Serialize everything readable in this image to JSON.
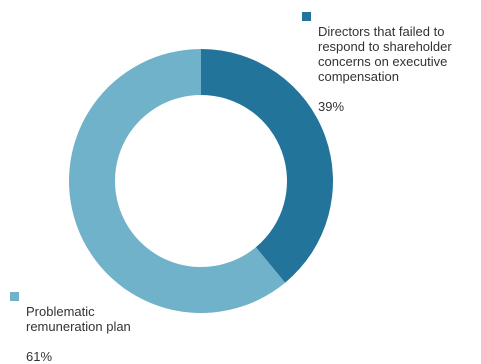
{
  "chart_data": {
    "type": "pie",
    "style": "donut",
    "series": [
      {
        "name": "Directors that failed to\nrespond to shareholder\nconcerns on executive\ncompensation",
        "value": 39,
        "value_label": "39%",
        "color": "#23749a"
      },
      {
        "name": "Problematic\nremuneration plan",
        "value": 61,
        "value_label": "61%",
        "color": "#70b2c9"
      }
    ]
  }
}
